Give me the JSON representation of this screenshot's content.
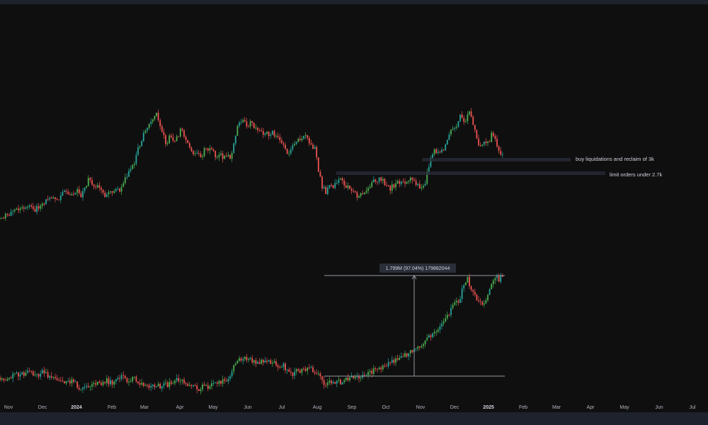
{
  "chart_data": {
    "type": "candlestick",
    "colors": {
      "up": "#26a69a",
      "up_bright": "#4caf50",
      "down": "#ef5350",
      "background": "#0f0f10",
      "guide": "#5d606b"
    },
    "x_axis": {
      "ticks": [
        {
          "label": "Nov",
          "bold": false
        },
        {
          "label": "Dec",
          "bold": false
        },
        {
          "label": "2024",
          "bold": true
        },
        {
          "label": "Feb",
          "bold": false
        },
        {
          "label": "Mar",
          "bold": false
        },
        {
          "label": "Apr",
          "bold": false
        },
        {
          "label": "May",
          "bold": false
        },
        {
          "label": "Jun",
          "bold": false
        },
        {
          "label": "Jul",
          "bold": false
        },
        {
          "label": "Aug",
          "bold": false
        },
        {
          "label": "Sep",
          "bold": false
        },
        {
          "label": "Oct",
          "bold": false
        },
        {
          "label": "Nov",
          "bold": false
        },
        {
          "label": "Dec",
          "bold": false
        },
        {
          "label": "2025",
          "bold": true
        },
        {
          "label": "Feb",
          "bold": false
        },
        {
          "label": "Mar",
          "bold": false
        },
        {
          "label": "Apr",
          "bold": false
        },
        {
          "label": "May",
          "bold": false
        },
        {
          "label": "Jun",
          "bold": false
        },
        {
          "label": "Jul",
          "bold": false
        }
      ]
    },
    "panels": [
      {
        "name": "",
        "path_points": [
          [
            0,
            0.0
          ],
          [
            10,
            0.02
          ],
          [
            20,
            0.09
          ],
          [
            30,
            0.07
          ],
          [
            40,
            0.11
          ],
          [
            50,
            0.08
          ],
          [
            60,
            0.13
          ],
          [
            70,
            0.19
          ],
          [
            80,
            0.17
          ],
          [
            90,
            0.23
          ],
          [
            100,
            0.21
          ],
          [
            110,
            0.25
          ],
          [
            115,
            0.19
          ],
          [
            120,
            0.27
          ],
          [
            125,
            0.35
          ],
          [
            130,
            0.31
          ],
          [
            140,
            0.29
          ],
          [
            145,
            0.22
          ],
          [
            150,
            0.2
          ],
          [
            160,
            0.26
          ],
          [
            170,
            0.24
          ],
          [
            175,
            0.34
          ],
          [
            180,
            0.41
          ],
          [
            190,
            0.49
          ],
          [
            195,
            0.63
          ],
          [
            200,
            0.71
          ],
          [
            205,
            0.79
          ],
          [
            210,
            0.86
          ],
          [
            215,
            0.91
          ],
          [
            220,
            0.96
          ],
          [
            225,
            0.86
          ],
          [
            230,
            0.76
          ],
          [
            235,
            0.67
          ],
          [
            240,
            0.74
          ],
          [
            245,
            0.71
          ],
          [
            250,
            0.73
          ],
          [
            255,
            0.8
          ],
          [
            260,
            0.76
          ],
          [
            265,
            0.68
          ],
          [
            270,
            0.62
          ],
          [
            275,
            0.57
          ],
          [
            280,
            0.61
          ],
          [
            285,
            0.55
          ],
          [
            290,
            0.65
          ],
          [
            295,
            0.62
          ],
          [
            300,
            0.61
          ],
          [
            305,
            0.56
          ],
          [
            310,
            0.6
          ],
          [
            315,
            0.53
          ],
          [
            320,
            0.58
          ],
          [
            325,
            0.52
          ],
          [
            330,
            0.68
          ],
          [
            335,
            0.83
          ],
          [
            340,
            0.89
          ],
          [
            345,
            0.86
          ],
          [
            350,
            0.85
          ],
          [
            355,
            0.87
          ],
          [
            360,
            0.8
          ],
          [
            365,
            0.82
          ],
          [
            370,
            0.77
          ],
          [
            375,
            0.79
          ],
          [
            380,
            0.73
          ],
          [
            385,
            0.78
          ],
          [
            390,
            0.74
          ],
          [
            395,
            0.71
          ],
          [
            400,
            0.66
          ],
          [
            405,
            0.58
          ],
          [
            410,
            0.61
          ],
          [
            415,
            0.66
          ],
          [
            420,
            0.69
          ],
          [
            425,
            0.73
          ],
          [
            430,
            0.76
          ],
          [
            435,
            0.7
          ],
          [
            440,
            0.66
          ],
          [
            445,
            0.63
          ],
          [
            450,
            0.42
          ],
          [
            455,
            0.29
          ],
          [
            460,
            0.24
          ],
          [
            465,
            0.31
          ],
          [
            470,
            0.29
          ],
          [
            475,
            0.33
          ],
          [
            480,
            0.36
          ],
          [
            485,
            0.31
          ],
          [
            490,
            0.29
          ],
          [
            495,
            0.26
          ],
          [
            500,
            0.23
          ],
          [
            505,
            0.2
          ],
          [
            510,
            0.22
          ],
          [
            515,
            0.25
          ],
          [
            520,
            0.27
          ],
          [
            525,
            0.34
          ],
          [
            530,
            0.32
          ],
          [
            535,
            0.36
          ],
          [
            540,
            0.34
          ],
          [
            545,
            0.3
          ],
          [
            550,
            0.27
          ],
          [
            555,
            0.29
          ],
          [
            560,
            0.31
          ],
          [
            565,
            0.33
          ],
          [
            570,
            0.31
          ],
          [
            575,
            0.34
          ],
          [
            580,
            0.37
          ],
          [
            585,
            0.33
          ],
          [
            590,
            0.3
          ],
          [
            595,
            0.29
          ],
          [
            600,
            0.31
          ],
          [
            605,
            0.45
          ],
          [
            610,
            0.56
          ],
          [
            615,
            0.62
          ],
          [
            620,
            0.58
          ],
          [
            625,
            0.61
          ],
          [
            630,
            0.67
          ],
          [
            635,
            0.78
          ],
          [
            640,
            0.82
          ],
          [
            645,
            0.84
          ],
          [
            650,
            0.92
          ],
          [
            655,
            0.87
          ],
          [
            660,
            0.94
          ],
          [
            665,
            0.96
          ],
          [
            670,
            0.8
          ],
          [
            675,
            0.69
          ],
          [
            680,
            0.63
          ],
          [
            685,
            0.71
          ],
          [
            690,
            0.68
          ],
          [
            695,
            0.79
          ],
          [
            700,
            0.7
          ],
          [
            705,
            0.61
          ],
          [
            710,
            0.59
          ]
        ],
        "annotations": [
          {
            "text": "buy liquidations and reclaim of 3k"
          },
          {
            "text": "limit orders under 2.7k"
          }
        ]
      },
      {
        "name": "",
        "path_points": [
          [
            0,
            0.12
          ],
          [
            10,
            0.1
          ],
          [
            20,
            0.15
          ],
          [
            30,
            0.13
          ],
          [
            40,
            0.18
          ],
          [
            50,
            0.14
          ],
          [
            60,
            0.16
          ],
          [
            70,
            0.12
          ],
          [
            80,
            0.11
          ],
          [
            90,
            0.09
          ],
          [
            100,
            0.08
          ],
          [
            110,
            0.05
          ],
          [
            115,
            0.0
          ],
          [
            120,
            0.06
          ],
          [
            130,
            0.04
          ],
          [
            140,
            0.07
          ],
          [
            150,
            0.09
          ],
          [
            160,
            0.07
          ],
          [
            170,
            0.12
          ],
          [
            180,
            0.09
          ],
          [
            190,
            0.11
          ],
          [
            200,
            0.07
          ],
          [
            210,
            0.03
          ],
          [
            220,
            0.05
          ],
          [
            230,
            0.04
          ],
          [
            240,
            0.06
          ],
          [
            250,
            0.09
          ],
          [
            260,
            0.07
          ],
          [
            270,
            0.06
          ],
          [
            280,
            0.02
          ],
          [
            290,
            0.04
          ],
          [
            300,
            0.05
          ],
          [
            310,
            0.07
          ],
          [
            320,
            0.09
          ],
          [
            330,
            0.2
          ],
          [
            340,
            0.28
          ],
          [
            350,
            0.27
          ],
          [
            360,
            0.25
          ],
          [
            370,
            0.26
          ],
          [
            380,
            0.24
          ],
          [
            390,
            0.23
          ],
          [
            400,
            0.22
          ],
          [
            405,
            0.17
          ],
          [
            410,
            0.14
          ],
          [
            420,
            0.17
          ],
          [
            430,
            0.19
          ],
          [
            440,
            0.18
          ],
          [
            450,
            0.14
          ],
          [
            455,
            0.07
          ],
          [
            460,
            0.06
          ],
          [
            470,
            0.07
          ],
          [
            480,
            0.08
          ],
          [
            490,
            0.1
          ],
          [
            500,
            0.11
          ],
          [
            510,
            0.14
          ],
          [
            520,
            0.15
          ],
          [
            530,
            0.18
          ],
          [
            540,
            0.2
          ],
          [
            550,
            0.23
          ],
          [
            560,
            0.27
          ],
          [
            570,
            0.3
          ],
          [
            580,
            0.34
          ],
          [
            590,
            0.38
          ],
          [
            600,
            0.43
          ],
          [
            610,
            0.49
          ],
          [
            620,
            0.55
          ],
          [
            630,
            0.63
          ],
          [
            640,
            0.73
          ],
          [
            650,
            0.8
          ],
          [
            655,
            0.92
          ],
          [
            660,
            0.97
          ],
          [
            665,
            0.89
          ],
          [
            670,
            0.86
          ],
          [
            675,
            0.78
          ],
          [
            680,
            0.75
          ],
          [
            685,
            0.78
          ],
          [
            690,
            0.85
          ],
          [
            695,
            0.93
          ],
          [
            700,
            0.98
          ],
          [
            705,
            0.96
          ],
          [
            710,
            0.99
          ]
        ],
        "measurement": {
          "label": "1.799M (97.04%) 179882044",
          "change_percent": 97.04
        }
      }
    ]
  }
}
